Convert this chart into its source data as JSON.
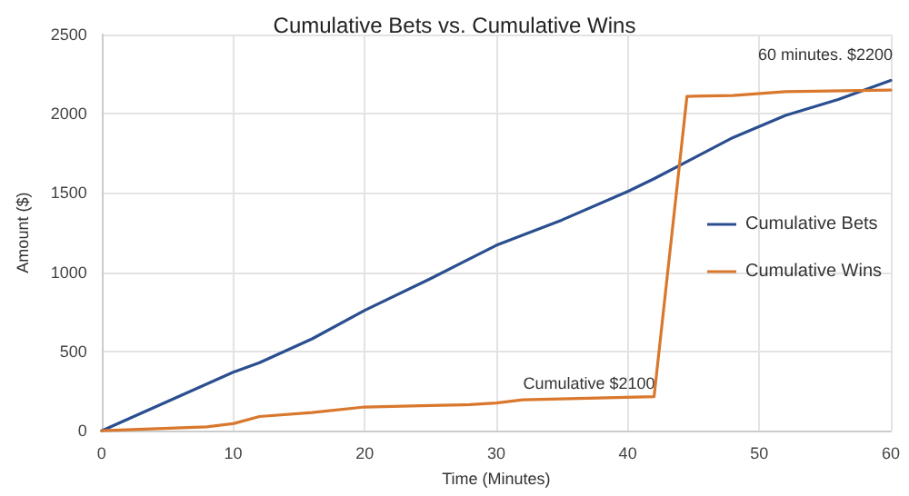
{
  "chart_data": {
    "type": "line",
    "title": "Cumulative Bets vs. Cumulative Wins",
    "xlabel": "Time (Minutes)",
    "ylabel": "Amount ($)",
    "xlim": [
      0,
      60
    ],
    "xticks": [
      0,
      10,
      20,
      30,
      40,
      50,
      60
    ],
    "ylim": [
      0,
      2500
    ],
    "yticks": [
      0,
      500,
      1000,
      1500,
      2000,
      2500
    ],
    "grid": true,
    "legend": "right",
    "marker": "none",
    "line_style": "solid",
    "series": [
      {
        "name": "Cumulative Bets",
        "color": "#2a4e8f",
        "x": [
          0,
          10,
          12,
          16,
          20,
          25,
          30,
          35,
          40,
          42,
          45,
          48,
          52,
          56,
          60
        ],
        "values": [
          0,
          370,
          430,
          580,
          760,
          960,
          1170,
          1330,
          1510,
          1590,
          1720,
          1850,
          1990,
          2090,
          2210
        ]
      },
      {
        "name": "Cumulative Wins",
        "color": "#d9782d",
        "x": [
          0,
          8,
          10,
          12,
          16,
          20,
          25,
          28,
          30,
          32,
          42,
          44.5,
          48,
          52,
          60
        ],
        "values": [
          0,
          25,
          45,
          90,
          115,
          150,
          160,
          165,
          175,
          195,
          215,
          2110,
          2115,
          2140,
          2150
        ]
      }
    ],
    "annotations": [
      "Cumulative $2100",
      "60 minutes. $2200"
    ]
  }
}
